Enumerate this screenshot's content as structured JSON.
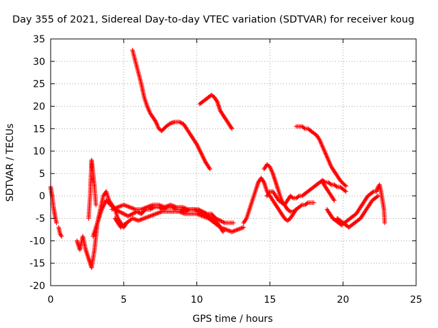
{
  "chart_data": {
    "type": "scatter",
    "title": "Day 355 of 2021, Sidereal Day-to-day VTEC variation (SDTVAR) for receiver koug",
    "xlabel": "GPS time / hours",
    "ylabel": "SDTVAR / TECUs",
    "xlim": [
      0,
      25
    ],
    "ylim": [
      -20,
      35
    ],
    "xticks": [
      0,
      5,
      10,
      15,
      20,
      25
    ],
    "yticks": [
      -20,
      -15,
      -10,
      -5,
      0,
      5,
      10,
      15,
      20,
      25,
      30,
      35
    ],
    "grid": true,
    "marker": "+",
    "color": "#ff0000",
    "series": [
      {
        "name": "trace-1",
        "x": [
          0.0,
          0.1,
          0.2,
          0.3,
          0.4
        ],
        "y": [
          2,
          0,
          -2.5,
          -4.5,
          -6
        ]
      },
      {
        "name": "trace-2",
        "x": [
          0.55,
          0.65,
          0.75
        ],
        "y": [
          -7,
          -8.5,
          -9
        ]
      },
      {
        "name": "trace-3",
        "x": [
          1.8,
          2.0,
          2.2,
          2.4,
          2.6,
          2.8,
          3.0,
          3.2,
          3.4,
          3.6,
          3.8,
          4.0,
          4.2,
          4.4,
          4.6,
          4.8,
          5.0,
          5.2
        ],
        "y": [
          -10,
          -12,
          -9,
          -12,
          -14,
          -16,
          -12,
          -6,
          -3,
          0,
          1,
          -1,
          -2,
          -3,
          -5,
          -6,
          -7,
          -6
        ]
      },
      {
        "name": "trace-4",
        "x": [
          2.6,
          2.7,
          2.8,
          2.9,
          3.0,
          3.1
        ],
        "y": [
          -5,
          0,
          8,
          5,
          2,
          -2
        ]
      },
      {
        "name": "trace-5",
        "x": [
          2.9,
          3.2,
          3.5,
          3.8,
          4.1,
          4.4,
          4.7,
          5.0,
          5.3,
          5.6,
          5.9,
          6.2,
          6.5,
          6.8,
          7.1,
          7.4,
          7.7,
          8.0,
          8.3,
          8.6,
          8.9,
          9.2,
          9.5,
          9.8,
          10.1,
          10.4,
          10.7,
          11.0,
          11.3,
          11.6,
          11.9,
          12.2,
          12.5
        ],
        "y": [
          -9,
          -6,
          -3,
          -1,
          -2,
          -3,
          -3.5,
          -4,
          -4.5,
          -4,
          -3.5,
          -4,
          -3,
          -3,
          -2.5,
          -2.5,
          -3,
          -2.5,
          -2.5,
          -3,
          -3,
          -3.5,
          -3,
          -3,
          -3,
          -3.5,
          -4,
          -4,
          -5,
          -5.5,
          -6,
          -6,
          -6
        ]
      },
      {
        "name": "trace-6",
        "x": [
          4.4,
          4.8,
          5.2,
          5.6,
          6.0,
          6.4,
          6.8,
          7.2,
          7.6,
          8.0,
          8.4,
          8.8,
          9.2,
          9.6,
          10.0,
          10.4,
          10.8,
          11.2,
          11.6,
          12.0,
          12.4,
          12.8,
          13.2
        ],
        "y": [
          -5,
          -7,
          -6,
          -5,
          -5.5,
          -5,
          -4.5,
          -4,
          -3.5,
          -3.5,
          -3.5,
          -3.5,
          -4,
          -4,
          -4,
          -4.5,
          -5,
          -6,
          -7,
          -7.5,
          -8,
          -7.5,
          -7
        ]
      },
      {
        "name": "trace-7",
        "x": [
          4.2,
          4.6,
          5.0,
          5.4,
          5.8,
          6.2,
          6.6,
          7.0,
          7.4,
          7.8,
          8.2,
          8.6,
          9.0,
          9.4,
          9.8,
          10.2,
          10.6,
          11.0,
          11.4,
          11.8
        ],
        "y": [
          -3,
          -2.5,
          -2,
          -2.5,
          -3,
          -3,
          -2.5,
          -2,
          -2,
          -2.5,
          -2,
          -2.5,
          -2.5,
          -3,
          -3,
          -3.5,
          -4,
          -5,
          -6,
          -8
        ]
      },
      {
        "name": "trace-8",
        "x": [
          5.6,
          5.8,
          6.0,
          6.2,
          6.4,
          6.6,
          6.8,
          7.0,
          7.2,
          7.4,
          7.6,
          7.9,
          8.2,
          8.5,
          8.8,
          9.1,
          9.4,
          9.7,
          10.0,
          10.3,
          10.6,
          10.9
        ],
        "y": [
          32.5,
          30,
          27.5,
          25,
          22,
          20,
          18.5,
          17.5,
          16.5,
          15,
          14.5,
          15.5,
          16.2,
          16.5,
          16.5,
          16,
          14.5,
          13,
          11.5,
          9.5,
          7.5,
          6
        ]
      },
      {
        "name": "trace-9",
        "x": [
          10.2,
          10.4,
          10.6,
          10.8,
          11.0,
          11.2,
          11.4,
          11.6,
          11.8,
          12.0,
          12.2,
          12.4
        ],
        "y": [
          20.5,
          21,
          21.5,
          22,
          22.5,
          22,
          21,
          19,
          18,
          17,
          16,
          15
        ]
      },
      {
        "name": "trace-10",
        "x": [
          13.2,
          13.4,
          13.6,
          13.8,
          14.0,
          14.2,
          14.4,
          14.6,
          14.8,
          15.0,
          15.2,
          15.4,
          15.6,
          15.8,
          16.0,
          16.2,
          16.4,
          16.6,
          16.8,
          17.0,
          17.2,
          17.4,
          17.6,
          17.8,
          18.0
        ],
        "y": [
          -6,
          -5,
          -3,
          -1,
          1,
          3,
          4,
          3,
          1,
          0,
          -1,
          -2,
          -3,
          -4,
          -5,
          -5.5,
          -5,
          -4,
          -3,
          -2.5,
          -2,
          -2,
          -1.5,
          -1.5,
          -1.5
        ]
      },
      {
        "name": "trace-11",
        "x": [
          14.6,
          14.8,
          15.0,
          15.2,
          15.4,
          15.6,
          15.8,
          16.0,
          16.2,
          16.4,
          16.6,
          16.8
        ],
        "y": [
          6,
          7,
          6.5,
          5,
          3,
          1,
          -1,
          -2,
          -3,
          -3.5,
          -3.5,
          -3
        ]
      },
      {
        "name": "trace-12",
        "x": [
          14.8,
          15.0,
          15.2,
          15.4,
          15.6,
          15.8,
          16.0,
          16.2,
          16.4,
          16.6,
          16.8,
          17.0,
          17.2,
          17.4,
          17.6,
          17.8,
          18.0,
          18.2,
          18.4,
          18.6,
          18.8,
          19.0,
          19.2,
          19.4,
          19.6,
          19.8,
          20.0,
          20.2
        ],
        "y": [
          0,
          1,
          1,
          0,
          -1,
          -1.5,
          -2,
          -1,
          0,
          -0.5,
          -0.5,
          0,
          0,
          0.5,
          1,
          1.5,
          2,
          2.5,
          3,
          3.5,
          3,
          3,
          2.5,
          2.5,
          2,
          2,
          1.5,
          1
        ]
      },
      {
        "name": "trace-13",
        "x": [
          16.8,
          17.0,
          17.2,
          17.4,
          17.6,
          17.8,
          18.0,
          18.2,
          18.4,
          18.6,
          18.8,
          19.0,
          19.2,
          19.4,
          19.6,
          19.8,
          20.0,
          20.2
        ],
        "y": [
          15.5,
          15.5,
          15.5,
          15,
          15,
          14.5,
          14,
          13.5,
          12.5,
          11,
          9.5,
          8,
          6.5,
          5.5,
          4.5,
          3.5,
          2.8,
          2.2
        ]
      },
      {
        "name": "trace-14",
        "x": [
          18.6,
          18.8,
          19.0,
          19.2,
          19.4
        ],
        "y": [
          3,
          2,
          1,
          0,
          -1
        ]
      },
      {
        "name": "trace-15",
        "x": [
          18.9,
          19.1,
          19.3,
          19.5,
          19.7,
          19.9,
          20.1,
          20.3,
          20.5,
          20.7,
          20.9,
          21.1,
          21.3,
          21.5,
          21.7,
          21.9,
          22.1,
          22.3
        ],
        "y": [
          -3,
          -4,
          -5,
          -5.5,
          -6,
          -6.5,
          -6,
          -5.5,
          -5,
          -4.5,
          -4,
          -3,
          -2,
          -1,
          0,
          0.5,
          1,
          1
        ]
      },
      {
        "name": "trace-16",
        "x": [
          19.6,
          19.8,
          20.0,
          20.2,
          20.4,
          20.6,
          20.8,
          21.0,
          21.2,
          21.4,
          21.6,
          21.8,
          22.0,
          22.2,
          22.4
        ],
        "y": [
          -5,
          -5.5,
          -6,
          -6.5,
          -7,
          -6.5,
          -6,
          -5.5,
          -5,
          -4,
          -3,
          -2,
          -1,
          -0.5,
          0
        ]
      },
      {
        "name": "trace-17",
        "x": [
          22.3,
          22.4,
          22.5,
          22.6,
          22.7,
          22.8,
          22.85
        ],
        "y": [
          1,
          2,
          2.5,
          1,
          -1,
          -3,
          -6
        ]
      }
    ]
  }
}
